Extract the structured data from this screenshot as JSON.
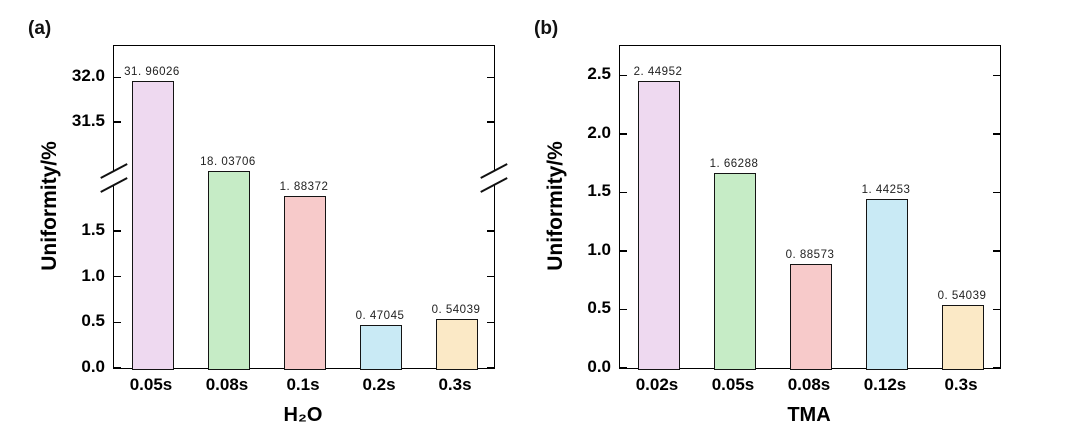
{
  "figure": {
    "background": "#ffffff",
    "frame_color": "#000000",
    "value_label_color": "#222222"
  },
  "chart_data": [
    {
      "type": "bar",
      "panel": "(a)",
      "title": "",
      "xlabel": "H₂O",
      "ylabel": "Uniformity/%",
      "categories": [
        "0.05s",
        "0.08s",
        "0.1s",
        "0.2s",
        "0.3s"
      ],
      "values": [
        31.96026,
        18.03706,
        1.88372,
        0.47045,
        0.54039
      ],
      "value_labels": [
        "31. 96026",
        "18. 03706",
        "1. 88372",
        "0. 47045",
        "0. 54039"
      ],
      "bar_colors": [
        "#eed9f0",
        "#c6ecc6",
        "#f7caca",
        "#c9eaf5",
        "#fbe9c6"
      ],
      "axis_break": true,
      "lower_ylim": [
        0,
        2.0
      ],
      "upper_ylim": [
        30.95,
        32.35
      ],
      "lower_ticks": [
        "0.0",
        "0.5",
        "1.0",
        "1.5"
      ],
      "upper_ticks": [
        "31.5",
        "32.0"
      ],
      "grid": false,
      "legend": "none"
    },
    {
      "type": "bar",
      "panel": "(b)",
      "title": "",
      "xlabel": "TMA",
      "ylabel": "Uniformity/%",
      "categories": [
        "0.02s",
        "0.05s",
        "0.08s",
        "0.12s",
        "0.3s"
      ],
      "values": [
        2.44952,
        1.66288,
        0.88573,
        1.44253,
        0.54039
      ],
      "value_labels": [
        "2. 44952",
        "1. 66288",
        "0. 88573",
        "1. 44253",
        "0. 54039"
      ],
      "bar_colors": [
        "#eed9f0",
        "#c6ecc6",
        "#f7caca",
        "#c9eaf5",
        "#fbe9c6"
      ],
      "axis_break": false,
      "ylim": [
        0,
        2.75
      ],
      "yticks": [
        "0.0",
        "0.5",
        "1.0",
        "1.5",
        "2.0",
        "2.5"
      ],
      "grid": false,
      "legend": "none"
    }
  ]
}
